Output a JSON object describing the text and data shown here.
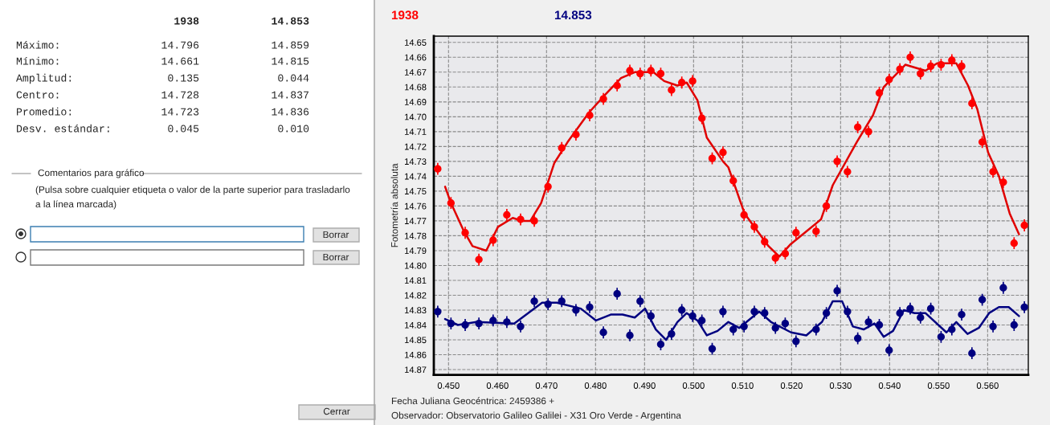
{
  "chart_data": {
    "type": "scatter",
    "xlabel": "Fecha Juliana Geocéntrica: 2459386 +",
    "ylabel": "Fotometría absoluta",
    "xlim": [
      0.447,
      0.5683
    ],
    "ylim": [
      14.8736,
      14.6458
    ],
    "xticks": [
      {
        "value": 0.45,
        "label": "0.450"
      },
      {
        "value": 0.46,
        "label": "0.460"
      },
      {
        "value": 0.47,
        "label": "0.470"
      },
      {
        "value": 0.48,
        "label": "0.480"
      },
      {
        "value": 0.49,
        "label": "0.490"
      },
      {
        "value": 0.5,
        "label": "0.500"
      },
      {
        "value": 0.51,
        "label": "0.510"
      },
      {
        "value": 0.52,
        "label": "0.520"
      },
      {
        "value": 0.53,
        "label": "0.530"
      },
      {
        "value": 0.54,
        "label": "0.540"
      },
      {
        "value": 0.55,
        "label": "0.550"
      },
      {
        "value": 0.56,
        "label": "0.560"
      }
    ],
    "yticks": [
      14.65,
      14.66,
      14.67,
      14.68,
      14.69,
      {
        "value": 14.7,
        "label": "14.70"
      },
      14.71,
      14.72,
      14.73,
      14.74,
      14.75,
      14.76,
      14.77,
      14.78,
      14.79,
      {
        "value": 14.8,
        "label": "14.80"
      },
      14.81,
      14.82,
      14.83,
      14.84,
      14.85,
      14.86,
      14.87
    ],
    "grid": true,
    "series": [
      {
        "marker": "circle",
        "name": "1938",
        "color": "#ff0000",
        "x": [
          0.4478,
          0.4505,
          0.4534,
          0.4562,
          0.4591,
          0.4619,
          0.4647,
          0.4675,
          0.4703,
          0.4731,
          0.476,
          0.4788,
          0.4816,
          0.4844,
          0.487,
          0.4891,
          0.4913,
          0.4933,
          0.4955,
          0.4976,
          0.4998,
          0.5017,
          0.5038,
          0.506,
          0.5081,
          0.5103,
          0.5124,
          0.5145,
          0.5167,
          0.5187,
          0.5209,
          0.525,
          0.5271,
          0.5293,
          0.5314,
          0.5335,
          0.5357,
          0.5379,
          0.5399,
          0.5421,
          0.5442,
          0.5463,
          0.5484,
          0.5505,
          0.5527,
          0.5547,
          0.5568,
          0.5589,
          0.5611,
          0.5632,
          0.5654,
          0.5675
        ],
        "values": [
          14.735,
          14.758,
          14.778,
          14.796,
          14.783,
          14.766,
          14.769,
          14.77,
          14.747,
          14.721,
          14.712,
          14.699,
          14.688,
          14.679,
          14.669,
          14.671,
          14.669,
          14.671,
          14.682,
          14.677,
          14.676,
          14.701,
          14.728,
          14.724,
          14.743,
          14.766,
          14.774,
          14.784,
          14.795,
          14.792,
          14.778,
          14.777,
          14.76,
          14.73,
          14.737,
          14.707,
          14.71,
          14.684,
          14.675,
          14.668,
          14.66,
          14.671,
          14.666,
          14.665,
          14.662,
          14.666,
          14.691,
          14.717,
          14.737,
          14.744,
          14.785,
          14.773
        ],
        "errors": [
          0.004,
          0.004,
          0.004,
          0.004,
          0.004,
          0.004,
          0.004,
          0.004,
          0.004,
          0.004,
          0.004,
          0.004,
          0.004,
          0.004,
          0.004,
          0.004,
          0.004,
          0.004,
          0.004,
          0.004,
          0.004,
          0.004,
          0.004,
          0.004,
          0.004,
          0.004,
          0.004,
          0.004,
          0.004,
          0.004,
          0.004,
          0.004,
          0.004,
          0.004,
          0.004,
          0.004,
          0.004,
          0.004,
          0.004,
          0.004,
          0.004,
          0.004,
          0.004,
          0.004,
          0.004,
          0.004,
          0.004,
          0.004,
          0.004,
          0.004,
          0.004,
          0.004
        ]
      },
      {
        "type": "line",
        "color": "#e00000",
        "x": [
          0.4493,
          0.4505,
          0.453,
          0.4549,
          0.4577,
          0.4601,
          0.4631,
          0.465,
          0.4667,
          0.4689,
          0.4716,
          0.4743,
          0.4787,
          0.482,
          0.4852,
          0.488,
          0.4918,
          0.494,
          0.4967,
          0.4986,
          0.5008,
          0.5027,
          0.506,
          0.5071,
          0.5104,
          0.5153,
          0.5175,
          0.5197,
          0.526,
          0.5284,
          0.5333,
          0.5366,
          0.5388,
          0.5432,
          0.5473,
          0.5497,
          0.5536,
          0.556,
          0.5579,
          0.5601,
          0.5623,
          0.5645,
          0.5664
        ],
        "values": [
          14.747,
          14.758,
          14.776,
          14.787,
          14.79,
          14.774,
          14.768,
          14.77,
          14.77,
          14.758,
          14.731,
          14.717,
          14.697,
          14.685,
          14.674,
          14.67,
          14.67,
          14.676,
          14.679,
          14.677,
          14.689,
          14.714,
          14.73,
          14.734,
          14.765,
          14.787,
          14.794,
          14.786,
          14.769,
          14.746,
          14.717,
          14.699,
          14.68,
          14.665,
          14.669,
          14.664,
          14.664,
          14.679,
          14.695,
          14.724,
          14.74,
          14.765,
          14.779
        ]
      },
      {
        "marker": "circle",
        "name": "14.853",
        "color": "#000080",
        "x": [
          0.4478,
          0.4505,
          0.4534,
          0.4562,
          0.4591,
          0.4619,
          0.4647,
          0.4675,
          0.4703,
          0.4731,
          0.476,
          0.4788,
          0.4816,
          0.4844,
          0.487,
          0.4891,
          0.4913,
          0.4933,
          0.4955,
          0.4976,
          0.4998,
          0.5017,
          0.5038,
          0.506,
          0.5081,
          0.5103,
          0.5124,
          0.5145,
          0.5167,
          0.5187,
          0.5209,
          0.525,
          0.5271,
          0.5293,
          0.5314,
          0.5335,
          0.5357,
          0.5379,
          0.5399,
          0.5421,
          0.5442,
          0.5463,
          0.5484,
          0.5505,
          0.5527,
          0.5547,
          0.5568,
          0.5589,
          0.5611,
          0.5632,
          0.5654,
          0.5675
        ],
        "values": [
          14.831,
          14.839,
          14.84,
          14.839,
          14.837,
          14.838,
          14.841,
          14.824,
          14.826,
          14.824,
          14.83,
          14.828,
          14.845,
          14.819,
          14.847,
          14.824,
          14.834,
          14.853,
          14.846,
          14.83,
          14.834,
          14.837,
          14.856,
          14.831,
          14.843,
          14.841,
          14.831,
          14.832,
          14.842,
          14.839,
          14.851,
          14.843,
          14.832,
          14.817,
          14.831,
          14.849,
          14.838,
          14.84,
          14.857,
          14.832,
          14.829,
          14.835,
          14.829,
          14.848,
          14.843,
          14.833,
          14.859,
          14.823,
          14.841,
          14.815,
          14.84,
          14.828
        ],
        "errors": [
          0.004,
          0.004,
          0.004,
          0.004,
          0.004,
          0.004,
          0.004,
          0.004,
          0.004,
          0.004,
          0.004,
          0.004,
          0.004,
          0.004,
          0.004,
          0.004,
          0.004,
          0.004,
          0.004,
          0.004,
          0.004,
          0.004,
          0.004,
          0.004,
          0.004,
          0.004,
          0.004,
          0.004,
          0.004,
          0.004,
          0.004,
          0.004,
          0.004,
          0.004,
          0.004,
          0.004,
          0.004,
          0.004,
          0.004,
          0.004,
          0.004,
          0.004,
          0.004,
          0.004,
          0.004,
          0.004,
          0.004,
          0.004,
          0.004,
          0.004,
          0.004,
          0.004
        ]
      },
      {
        "type": "line",
        "color": "#000080",
        "x": [
          0.4493,
          0.4519,
          0.4557,
          0.4634,
          0.4691,
          0.4721,
          0.477,
          0.4801,
          0.4831,
          0.4855,
          0.488,
          0.4901,
          0.4923,
          0.4944,
          0.4967,
          0.4986,
          0.5008,
          0.5027,
          0.5049,
          0.5071,
          0.5093,
          0.5134,
          0.5158,
          0.5199,
          0.523,
          0.5262,
          0.5284,
          0.5303,
          0.5325,
          0.5347,
          0.5369,
          0.5388,
          0.5407,
          0.5429,
          0.5451,
          0.5473,
          0.5516,
          0.5536,
          0.5559,
          0.5582,
          0.5603,
          0.5623,
          0.5643,
          0.5664
        ],
        "values": [
          14.836,
          14.84,
          14.838,
          14.839,
          14.825,
          14.825,
          14.829,
          14.837,
          14.833,
          14.833,
          14.835,
          14.829,
          14.843,
          14.85,
          14.838,
          14.832,
          14.837,
          14.847,
          14.844,
          14.838,
          14.842,
          14.831,
          14.838,
          14.845,
          14.847,
          14.838,
          14.824,
          14.824,
          14.841,
          14.843,
          14.839,
          14.848,
          14.844,
          14.83,
          14.832,
          14.832,
          14.845,
          14.838,
          14.846,
          14.842,
          14.832,
          14.828,
          14.828,
          14.834
        ]
      }
    ],
    "annotations": [
      "1938",
      "14.853",
      "Máximo:",
      "Mínimo:",
      "Amplitud:",
      "Centro:",
      "Promedio:",
      "Desv. estándar:",
      "14.796",
      "14.661",
      "0.135",
      "14.728",
      "14.723",
      "0.045",
      "14.859",
      "14.815",
      "0.044",
      "14.837",
      "14.836",
      "0.010",
      "Comentarios para gráfico",
      "(Pulsa sobre cualquier etiqueta o valor de la parte superior para trasladarlo",
      "a la línea marcada)",
      "Borrar",
      "Borrar",
      "Cerrar",
      "Observador: Observatorio Galileo Galilei - X31 Oro Verde - Argentina"
    ]
  }
}
